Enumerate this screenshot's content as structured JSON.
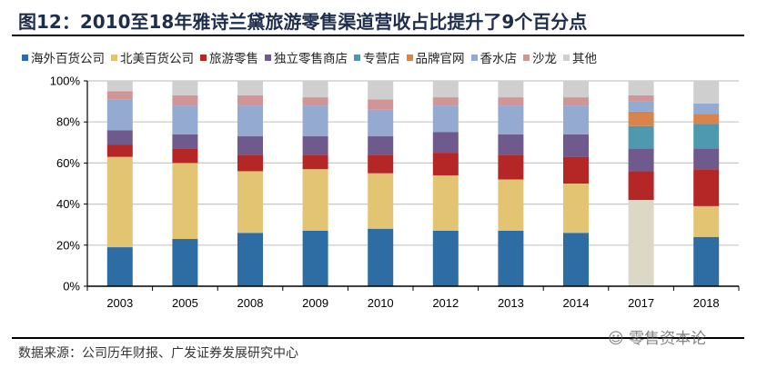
{
  "title": "图12：2010至18年雅诗兰黛旅游零售渠道营收占比提升了9个百分点",
  "source": "数据来源：公司历年财报、广发证券发展研究中心",
  "watermark": "零售资本论",
  "chart_data": {
    "type": "bar",
    "stacked": true,
    "percent": true,
    "title": "",
    "xlabel": "",
    "ylabel": "",
    "ylim": [
      0,
      100
    ],
    "yticks": [
      "0%",
      "20%",
      "40%",
      "60%",
      "80%",
      "100%"
    ],
    "grid": true,
    "legend_position": "top",
    "categories": [
      "2003",
      "2005",
      "2008",
      "2009",
      "2010",
      "2012",
      "2013",
      "2014",
      "2017",
      "2018"
    ],
    "series": [
      {
        "name": "海外百货公司",
        "color": "#2e6da4",
        "values": [
          19,
          23,
          26,
          27,
          28,
          27,
          27,
          26,
          0,
          24
        ]
      },
      {
        "name": "北美百货公司",
        "color": "#e3c473",
        "values": [
          44,
          37,
          30,
          30,
          27,
          27,
          25,
          24,
          0,
          15
        ]
      },
      {
        "name": "",
        "color": "#ddd8c6",
        "values": [
          0,
          0,
          0,
          0,
          0,
          0,
          0,
          0,
          42,
          0
        ]
      },
      {
        "name": "旅游零售",
        "color": "#b52626",
        "values": [
          6,
          7,
          8,
          7,
          9,
          11,
          12,
          13,
          14,
          18
        ]
      },
      {
        "name": "独立零售商店",
        "color": "#6f5a8e",
        "values": [
          7,
          7,
          9,
          9,
          9,
          10,
          10,
          11,
          11,
          10
        ]
      },
      {
        "name": "专营店",
        "color": "#4f99b0",
        "values": [
          0,
          0,
          0,
          0,
          0,
          0,
          0,
          0,
          11,
          12
        ]
      },
      {
        "name": "品牌官网",
        "color": "#d9844a",
        "values": [
          0,
          0,
          0,
          0,
          0,
          0,
          0,
          0,
          7,
          5
        ]
      },
      {
        "name": "香水店",
        "color": "#94aad0",
        "values": [
          15,
          14,
          15,
          15,
          13,
          13,
          14,
          14,
          5,
          5
        ]
      },
      {
        "name": "沙龙",
        "color": "#d29595",
        "values": [
          4,
          5,
          5,
          4,
          5,
          4,
          4,
          4,
          3,
          0
        ]
      },
      {
        "name": "其他",
        "color": "#cfcfcf",
        "values": [
          5,
          7,
          7,
          8,
          9,
          8,
          8,
          8,
          7,
          11
        ]
      }
    ]
  }
}
